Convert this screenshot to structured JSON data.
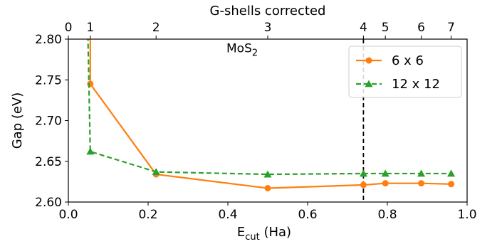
{
  "chart_data": {
    "type": "line",
    "title": "",
    "annotation": {
      "base": "MoS",
      "sub": "2",
      "x": 0.45,
      "y": 2.788
    },
    "xlabel": {
      "base": "E",
      "sub": "cut",
      "suffix": " (Ha)"
    },
    "ylabel": "Gap (eV)",
    "top_xlabel": "G-shells corrected",
    "xlim": [
      0.0,
      1.0
    ],
    "ylim": [
      2.6,
      2.8
    ],
    "xticks": [
      0.0,
      0.2,
      0.4,
      0.6,
      0.8,
      1.0
    ],
    "xtick_labels": [
      "0.0",
      "0.2",
      "0.4",
      "0.6",
      "0.8",
      "1.0"
    ],
    "yticks": [
      2.6,
      2.65,
      2.7,
      2.75,
      2.8
    ],
    "ytick_labels": [
      "2.60",
      "2.65",
      "2.70",
      "2.75",
      "2.80"
    ],
    "top_ticks": [
      {
        "x": 0.0,
        "label": "0"
      },
      {
        "x": 0.055,
        "label": "1"
      },
      {
        "x": 0.22,
        "label": "2"
      },
      {
        "x": 0.5,
        "label": "3"
      },
      {
        "x": 0.74,
        "label": "4"
      },
      {
        "x": 0.795,
        "label": "5"
      },
      {
        "x": 0.885,
        "label": "6"
      },
      {
        "x": 0.96,
        "label": "7"
      }
    ],
    "vline": {
      "x": 0.74,
      "color": "#000000",
      "style": "dashed"
    },
    "legend": {
      "position": "top-right"
    },
    "series": [
      {
        "name": "6 x 6",
        "color": "#ff7f0e",
        "marker": "circle",
        "linestyle": "solid",
        "line_x": [
          0.055,
          0.055,
          0.22,
          0.5,
          0.74,
          0.795,
          0.885,
          0.96
        ],
        "line_y": [
          2.9,
          2.745,
          2.634,
          2.617,
          2.621,
          2.623,
          2.623,
          2.622
        ],
        "x": [
          0.055,
          0.22,
          0.5,
          0.74,
          0.795,
          0.885,
          0.96
        ],
        "y": [
          2.745,
          2.634,
          2.617,
          2.621,
          2.623,
          2.623,
          2.622
        ]
      },
      {
        "name": "12 x 12",
        "color": "#2ca02c",
        "marker": "triangle",
        "linestyle": "dashed",
        "line_x": [
          0.045,
          0.055,
          0.22,
          0.5,
          0.74,
          0.795,
          0.885,
          0.96
        ],
        "line_y": [
          2.9,
          2.662,
          2.637,
          2.634,
          2.635,
          2.635,
          2.635,
          2.635
        ],
        "x": [
          0.055,
          0.22,
          0.5,
          0.74,
          0.795,
          0.885,
          0.96
        ],
        "y": [
          2.662,
          2.637,
          2.634,
          2.635,
          2.635,
          2.635,
          2.635
        ]
      }
    ]
  }
}
